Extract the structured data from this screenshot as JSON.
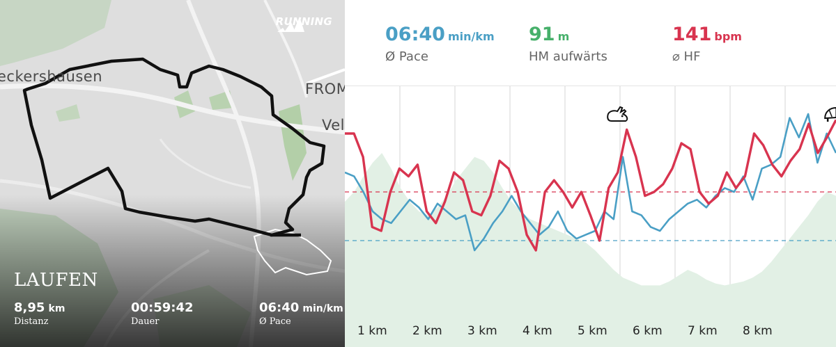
{
  "map": {
    "labels": [
      "eckershausen",
      "FROM",
      "Vel"
    ],
    "brand": {
      "logo_icon": "adidas-running-logo",
      "word": "RUNNING"
    },
    "activity_title": "LAUFEN",
    "stats": [
      {
        "value": "8,95",
        "unit": "km",
        "label": "Distanz"
      },
      {
        "value": "00:59:42",
        "unit": "",
        "label": "Dauer"
      },
      {
        "value": "06:40",
        "unit": "min/km",
        "label": "Ø Pace"
      }
    ]
  },
  "metrics": [
    {
      "value": "06:40",
      "unit": "min/km",
      "label": "Ø Pace",
      "color": "#4a9fc5"
    },
    {
      "value": "91",
      "unit": "m",
      "label": "HM aufwärts",
      "color": "#46b06a"
    },
    {
      "value": "141",
      "unit": "bpm",
      "label": "⌀ HF",
      "color": "#d8344f"
    }
  ],
  "chart_data": {
    "type": "line",
    "x_labels": [
      "1 km",
      "2 km",
      "3 km",
      "4 km",
      "5 km",
      "6 km",
      "7 km",
      "8 km"
    ],
    "markers": [
      {
        "icon": "rabbit-icon",
        "km": 4.85,
        "meaning": "fastest"
      },
      {
        "icon": "turtle-icon",
        "km": 8.85,
        "meaning": "slowest"
      }
    ],
    "elevation": [
      0.55,
      0.6,
      0.68,
      0.75,
      0.8,
      0.72,
      0.62,
      0.55,
      0.5,
      0.48,
      0.52,
      0.58,
      0.66,
      0.72,
      0.78,
      0.76,
      0.7,
      0.62,
      0.55,
      0.5,
      0.46,
      0.44,
      0.42,
      0.4,
      0.38,
      0.36,
      0.34,
      0.3,
      0.25,
      0.2,
      0.16,
      0.14,
      0.12,
      0.12,
      0.12,
      0.14,
      0.17,
      0.2,
      0.18,
      0.15,
      0.13,
      0.12,
      0.13,
      0.14,
      0.16,
      0.19,
      0.24,
      0.3,
      0.36,
      0.42,
      0.48,
      0.55,
      0.6,
      0.58
    ],
    "heart_rate": [
      0.9,
      0.9,
      0.78,
      0.42,
      0.4,
      0.6,
      0.72,
      0.68,
      0.74,
      0.5,
      0.44,
      0.55,
      0.7,
      0.66,
      0.5,
      0.48,
      0.58,
      0.76,
      0.72,
      0.6,
      0.38,
      0.3,
      0.6,
      0.66,
      0.6,
      0.52,
      0.6,
      0.48,
      0.35,
      0.62,
      0.7,
      0.92,
      0.78,
      0.58,
      0.6,
      0.64,
      0.72,
      0.85,
      0.82,
      0.6,
      0.54,
      0.58,
      0.7,
      0.62,
      0.68,
      0.9,
      0.84,
      0.74,
      0.68,
      0.76,
      0.82,
      0.95,
      0.8,
      0.88,
      0.97
    ],
    "pace": [
      0.7,
      0.68,
      0.6,
      0.5,
      0.46,
      0.44,
      0.5,
      0.56,
      0.52,
      0.46,
      0.54,
      0.5,
      0.46,
      0.48,
      0.3,
      0.36,
      0.44,
      0.5,
      0.58,
      0.5,
      0.44,
      0.38,
      0.42,
      0.5,
      0.4,
      0.36,
      0.38,
      0.4,
      0.5,
      0.46,
      0.78,
      0.5,
      0.48,
      0.42,
      0.4,
      0.46,
      0.5,
      0.54,
      0.56,
      0.52,
      0.58,
      0.62,
      0.6,
      0.68,
      0.56,
      0.72,
      0.74,
      0.78,
      0.98,
      0.88,
      1.0,
      0.75,
      0.9,
      0.8
    ],
    "hr_avg_line": 0.6,
    "pace_avg_line": 0.35
  }
}
